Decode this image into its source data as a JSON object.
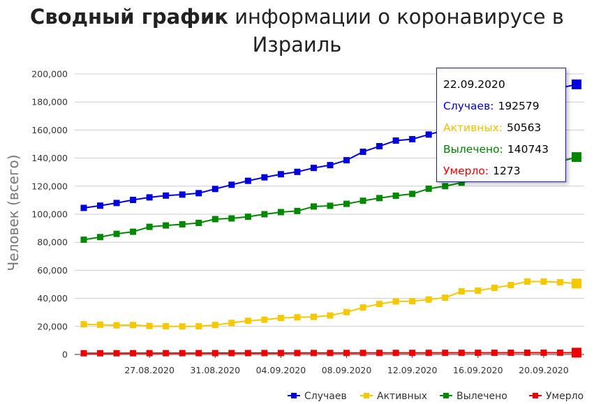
{
  "title": {
    "bold": "Сводный график",
    "rest_line1": "информации о коронавирусе в",
    "rest_line2": "Израиль"
  },
  "tooltip": {
    "date": "22.09.2020",
    "rows": [
      {
        "label": "Случаев:",
        "value": "192579",
        "color": "#0000cc"
      },
      {
        "label": "Активных:",
        "value": "50563",
        "color": "#f0c000"
      },
      {
        "label": "Вылечено:",
        "value": "140743",
        "color": "#008000"
      },
      {
        "label": "Умерло:",
        "value": "1273",
        "color": "#ee0000"
      }
    ]
  },
  "chart_data": {
    "type": "line",
    "title": "Сводный график информации о коронавирусе в Израиль",
    "ylabel": "Человек (всего)",
    "ylim": [
      0,
      200000
    ],
    "yticks": [
      0,
      20000,
      40000,
      60000,
      80000,
      100000,
      120000,
      140000,
      160000,
      180000,
      200000
    ],
    "ytick_labels": [
      "0",
      "20,000",
      "40,000",
      "60,000",
      "80,000",
      "100,000",
      "120,000",
      "140,000",
      "160,000",
      "180,000",
      "200,000"
    ],
    "x": [
      "23.08.2020",
      "24.08.2020",
      "25.08.2020",
      "26.08.2020",
      "27.08.2020",
      "28.08.2020",
      "29.08.2020",
      "30.08.2020",
      "31.08.2020",
      "01.09.2020",
      "02.09.2020",
      "03.09.2020",
      "04.09.2020",
      "05.09.2020",
      "06.09.2020",
      "07.09.2020",
      "08.09.2020",
      "09.09.2020",
      "10.09.2020",
      "11.09.2020",
      "12.09.2020",
      "13.09.2020",
      "14.09.2020",
      "15.09.2020",
      "16.09.2020",
      "17.09.2020",
      "18.09.2020",
      "19.09.2020",
      "20.09.2020",
      "21.09.2020",
      "22.09.2020"
    ],
    "xtick_labels": [
      "27.08.2020",
      "31.08.2020",
      "04.09.2020",
      "08.09.2020",
      "12.09.2020",
      "16.09.2020",
      "20.09.2020"
    ],
    "grid": true,
    "legend": "bottom-right",
    "series": [
      {
        "name": "Случаев",
        "color": "#0000dd",
        "values": [
          104500,
          106100,
          108000,
          110200,
          112000,
          113300,
          114000,
          115000,
          118000,
          121000,
          123800,
          126300,
          128500,
          130200,
          133000,
          135000,
          138500,
          144500,
          148500,
          152500,
          153500,
          156800,
          160000,
          165000,
          170000,
          176000,
          180000,
          183000,
          187500,
          190000,
          192579
        ]
      },
      {
        "name": "Активных",
        "color": "#f5c800",
        "values": [
          21500,
          21200,
          20800,
          21000,
          20300,
          20100,
          20000,
          20100,
          21000,
          22500,
          24000,
          24800,
          26000,
          26500,
          26800,
          27800,
          30200,
          33500,
          36000,
          37800,
          38000,
          39200,
          40500,
          45000,
          45500,
          47500,
          49500,
          52000,
          52000,
          51500,
          50563
        ]
      },
      {
        "name": "Вылечено",
        "color": "#008800",
        "values": [
          81800,
          83700,
          86000,
          87500,
          91000,
          92000,
          92800,
          93800,
          96500,
          97000,
          98200,
          100000,
          101500,
          102300,
          105500,
          106000,
          107400,
          109600,
          111500,
          113200,
          114500,
          118200,
          120000,
          122500,
          125500,
          128000,
          130500,
          132000,
          134000,
          137500,
          140743
        ]
      },
      {
        "name": "Умерло",
        "color": "#ee0000",
        "values": [
          872,
          886,
          900,
          910,
          924,
          935,
          945,
          957,
          970,
          983,
          995,
          1010,
          1025,
          1040,
          1055,
          1068,
          1080,
          1095,
          1110,
          1120,
          1134,
          1145,
          1160,
          1175,
          1190,
          1205,
          1220,
          1235,
          1250,
          1262,
          1273
        ]
      }
    ]
  }
}
